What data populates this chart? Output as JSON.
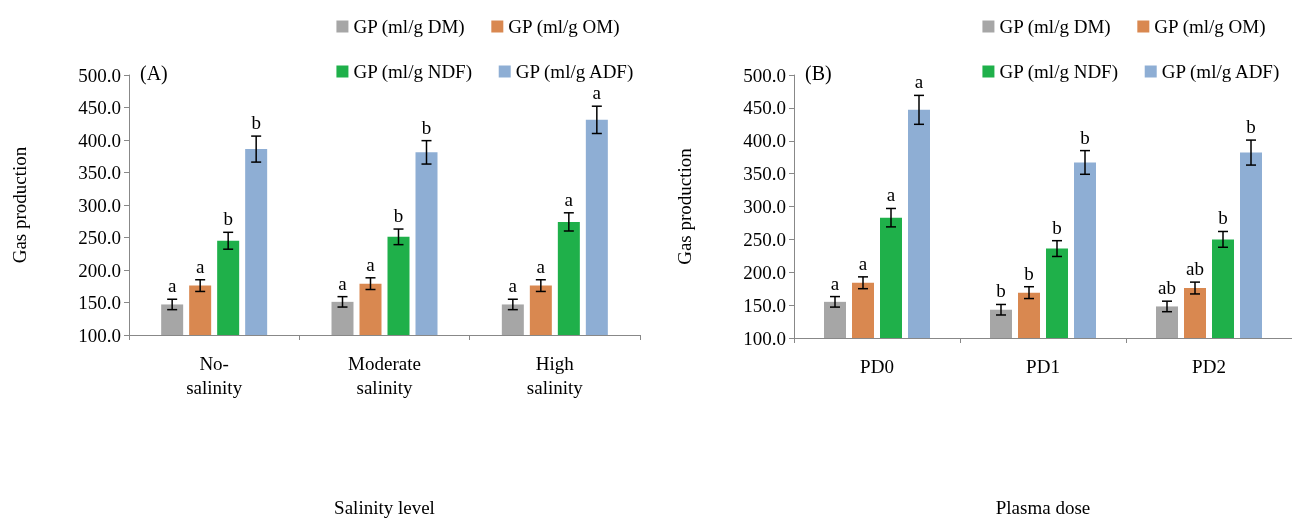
{
  "chart_data": [
    {
      "type": "bar",
      "title": "(A)",
      "xlabel": "Salinity level",
      "ylabel": "Gas production",
      "categories": [
        "No-salinity",
        "Moderate salinity",
        "High salinity"
      ],
      "ylim": [
        100,
        500
      ],
      "yticks": [
        {
          "value": 100,
          "label": "100.0"
        },
        {
          "value": 150,
          "label": "150.0"
        },
        {
          "value": 200,
          "label": "200.0"
        },
        {
          "value": 250,
          "label": "250.0"
        },
        {
          "value": 300,
          "label": "300.0"
        },
        {
          "value": 350,
          "label": "350.0"
        },
        {
          "value": 400,
          "label": "400.0"
        },
        {
          "value": 450,
          "label": "450.0"
        },
        {
          "value": 500,
          "label": "500.0"
        }
      ],
      "grid": false,
      "legend": "top right",
      "series": [
        {
          "name": "GP (ml/g DM)",
          "color": "#a6a6a6",
          "values": [
            147,
            151,
            147
          ],
          "errors": [
            8,
            8,
            8
          ],
          "value_labels": [
            "a",
            "a",
            "a"
          ]
        },
        {
          "name": "GP (ml/g OM)",
          "color": "#d98850",
          "values": [
            176,
            179,
            176
          ],
          "errors": [
            9,
            9,
            9
          ],
          "value_labels": [
            "a",
            "a",
            "a"
          ]
        },
        {
          "name": "GP (ml/g NDF)",
          "color": "#1fb04a",
          "values": [
            245,
            251,
            274
          ],
          "errors": [
            13,
            12,
            14
          ],
          "value_labels": [
            "b",
            "b",
            "a"
          ]
        },
        {
          "name": "GP (ml/g ADF)",
          "color": "#8eaed4",
          "values": [
            386,
            381,
            431
          ],
          "errors": [
            20,
            18,
            21
          ],
          "value_labels": [
            "b",
            "b",
            "a"
          ]
        }
      ]
    },
    {
      "type": "bar",
      "title": "(B)",
      "xlabel": "Plasma dose",
      "ylabel": "Gas production",
      "categories": [
        "PD0",
        "PD1",
        "PD2"
      ],
      "ylim": [
        100,
        500
      ],
      "yticks": [
        {
          "value": 100,
          "label": "100.0"
        },
        {
          "value": 150,
          "label": "150.0"
        },
        {
          "value": 200,
          "label": "200.0"
        },
        {
          "value": 250,
          "label": "250.0"
        },
        {
          "value": 300,
          "label": "300.0"
        },
        {
          "value": 350,
          "label": "350.0"
        },
        {
          "value": 400,
          "label": "400.0"
        },
        {
          "value": 450,
          "label": "450.0"
        },
        {
          "value": 500,
          "label": "500.0"
        }
      ],
      "grid": false,
      "legend": "top right",
      "series": [
        {
          "name": "GP (ml/g DM)",
          "color": "#a6a6a6",
          "values": [
            155,
            143,
            148
          ],
          "errors": [
            8,
            8,
            8
          ],
          "value_labels": [
            "a",
            "b",
            "ab"
          ]
        },
        {
          "name": "GP (ml/g OM)",
          "color": "#d98850",
          "values": [
            184,
            169,
            176
          ],
          "errors": [
            9,
            9,
            9
          ],
          "value_labels": [
            "a",
            "b",
            "ab"
          ]
        },
        {
          "name": "GP (ml/g NDF)",
          "color": "#1fb04a",
          "values": [
            283,
            236,
            250
          ],
          "errors": [
            14,
            12,
            12
          ],
          "value_labels": [
            "a",
            "b",
            "b"
          ]
        },
        {
          "name": "GP (ml/g ADF)",
          "color": "#8eaed4",
          "values": [
            447,
            367,
            382
          ],
          "errors": [
            22,
            18,
            19
          ],
          "value_labels": [
            "a",
            "b",
            "b"
          ]
        }
      ]
    }
  ]
}
